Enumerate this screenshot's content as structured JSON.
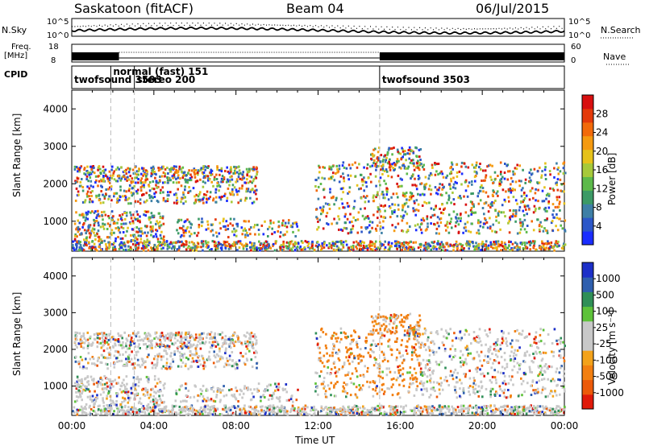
{
  "header": {
    "station": "Saskatoon (fitACF)",
    "beam": "Beam 04",
    "date": "06/Jul/2015"
  },
  "strip_labels": {
    "nsky": "N.Sky",
    "nsky_tick_top": "10^5",
    "nsky_tick_bot": "10^0",
    "nsky_right_top": "10^5",
    "nsky_right_bot": "10^0",
    "nsearch": "N.Search",
    "freq": "Freq.",
    "freq_unit": "[MHz]",
    "freq_tick_top": "18",
    "freq_tick_bot": "8",
    "nave_tick_top": "60",
    "nave_tick_bot": "0",
    "nave": "Nave",
    "cpid": "CPID"
  },
  "cpid_modes": [
    {
      "label": "twofsound 3503",
      "start_h": 0
    },
    {
      "label": "normal (fast) 151",
      "start_h": 1.9
    },
    {
      "label": "stereo 200",
      "start_h": 3.05
    },
    {
      "label": "twofsound 3503",
      "start_h": 15.0
    }
  ],
  "chart_data": [
    {
      "type": "heatmap",
      "name": "power",
      "xlabel": "",
      "ylabel": "Slant Range [km]",
      "xlim": [
        0,
        24
      ],
      "ylim": [
        200,
        4500
      ],
      "yticks": [
        "1000",
        "2000",
        "3000",
        "4000"
      ],
      "colorbar": {
        "label": "Power [dB]",
        "ticks": [
          "4",
          "8",
          "12",
          "16",
          "20",
          "24",
          "28"
        ],
        "range": [
          0,
          32
        ]
      }
    },
    {
      "type": "heatmap",
      "name": "velocity",
      "xlabel": "Time UT",
      "ylabel": "Slant Range [km]",
      "xlim": [
        0,
        24
      ],
      "ylim": [
        200,
        4500
      ],
      "yticks": [
        "1000",
        "2000",
        "3000",
        "4000"
      ],
      "xticks": [
        "00:00",
        "04:00",
        "08:00",
        "12:00",
        "16:00",
        "20:00",
        "00:00"
      ],
      "colorbar": {
        "label": "Velocity [m s⁻¹]",
        "ticks": [
          "1000",
          "500",
          "100",
          "25",
          "-25",
          "-100",
          "-500",
          "-1000"
        ]
      }
    }
  ],
  "colors": {
    "power_scale": [
      "#1a2dff",
      "#2c57c8",
      "#3e7fa6",
      "#3c9a66",
      "#5cb94a",
      "#a6c93a",
      "#e6c21a",
      "#f59a10",
      "#f26a0a",
      "#e43a0a",
      "#d81010"
    ],
    "velocity_scale": [
      "#1c2fc8",
      "#2f5fae",
      "#2f8f57",
      "#5ec23a",
      "#c8c8c8",
      "#c8c8c8",
      "#f3a21a",
      "#f27f10",
      "#ec5a0a",
      "#e01a0a"
    ]
  },
  "xlabel": "Time UT"
}
